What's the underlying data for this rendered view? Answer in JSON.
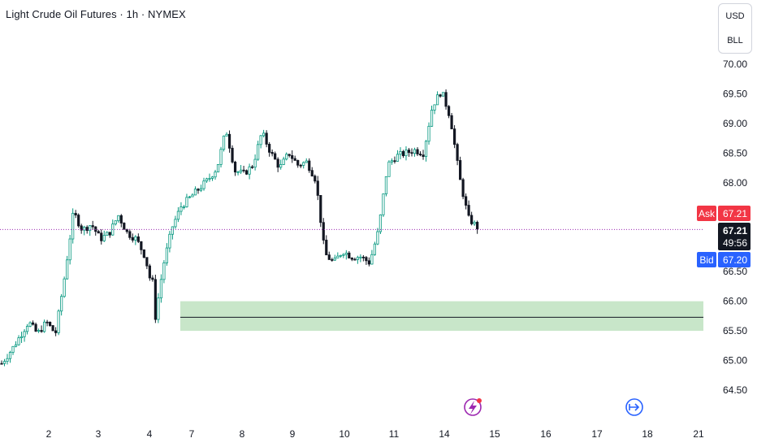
{
  "header": {
    "title": "Light Crude Oil Futures · 1h · NYMEX"
  },
  "price_scale": {
    "currency": "USD",
    "unit": "BLL"
  },
  "quotes": {
    "ask_label": "Ask",
    "ask_value": "67.21",
    "last_value": "67.21",
    "countdown": "49:56",
    "bid_label": "Bid",
    "bid_value": "67.20"
  },
  "icons": {
    "event_icon": "lightning-icon",
    "goto_icon": "goto-realtime-icon"
  },
  "colors": {
    "up": "#089981",
    "down": "#131722",
    "ask": "#f23645",
    "bid": "#2962ff",
    "zone": "#c8e6c9"
  },
  "chart_data": {
    "type": "candlestick",
    "title": "Light Crude Oil Futures · 1h · NYMEX",
    "ylim": [
      64.2,
      70.6
    ],
    "y_ticks": [
      "70.00",
      "69.50",
      "69.00",
      "68.50",
      "68.00",
      "67.50",
      "67.00",
      "66.50",
      "66.00",
      "65.50",
      "65.00",
      "64.50"
    ],
    "x_ticks": [
      "2",
      "3",
      "4",
      "7",
      "8",
      "9",
      "10",
      "11",
      "14",
      "15",
      "16",
      "17",
      "18",
      "21"
    ],
    "current_price": 67.21,
    "support_zone": {
      "low": 65.5,
      "high": 66.0,
      "line": 65.73
    },
    "path": [
      [
        0,
        64.95
      ],
      [
        1.2,
        65.2
      ],
      [
        3,
        65.65
      ],
      [
        4,
        65.45
      ],
      [
        5,
        65.65
      ],
      [
        6,
        65.45
      ],
      [
        7,
        66.4
      ],
      [
        8,
        67.5
      ],
      [
        9,
        67.2
      ],
      [
        10,
        67.3
      ],
      [
        11,
        67.05
      ],
      [
        12,
        67.15
      ],
      [
        13,
        67.45
      ],
      [
        14,
        67.15
      ],
      [
        15,
        67.05
      ],
      [
        16,
        66.75
      ],
      [
        16.5,
        66.4
      ],
      [
        16.8,
        66.4
      ],
      [
        17,
        65.6
      ],
      [
        18,
        66.6
      ],
      [
        19,
        67.25
      ],
      [
        20,
        67.6
      ],
      [
        21,
        67.75
      ],
      [
        22,
        67.9
      ],
      [
        23,
        68.05
      ],
      [
        24,
        68.25
      ],
      [
        25,
        68.9
      ],
      [
        26,
        68.2
      ],
      [
        27,
        68.15
      ],
      [
        28,
        68.3
      ],
      [
        29,
        68.85
      ],
      [
        30,
        68.5
      ],
      [
        31,
        68.25
      ],
      [
        32,
        68.5
      ],
      [
        33,
        68.3
      ],
      [
        34,
        68.35
      ],
      [
        35,
        68.05
      ],
      [
        36,
        66.8
      ],
      [
        37,
        66.65
      ],
      [
        38,
        66.85
      ],
      [
        39,
        66.75
      ],
      [
        40,
        66.75
      ],
      [
        41,
        66.65
      ],
      [
        42,
        67.2
      ],
      [
        43,
        68.3
      ],
      [
        44,
        68.45
      ],
      [
        45,
        68.5
      ],
      [
        46,
        68.55
      ],
      [
        47,
        68.5
      ],
      [
        48,
        69.3
      ],
      [
        49,
        69.55
      ],
      [
        50,
        69.1
      ],
      [
        51,
        68.1
      ],
      [
        52,
        67.4
      ],
      [
        53,
        67.25
      ]
    ]
  }
}
